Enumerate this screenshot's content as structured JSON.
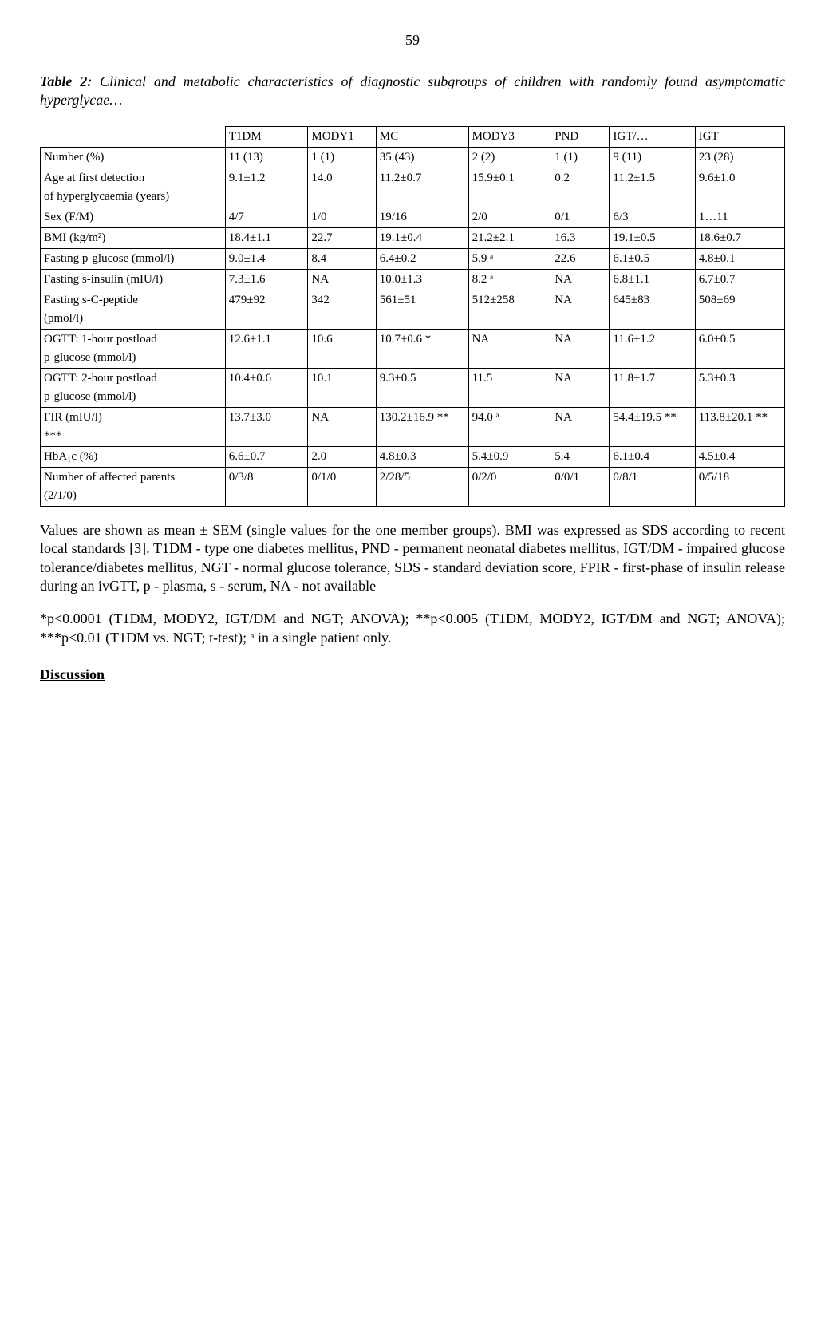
{
  "page_number": "59",
  "caption_prefix": "Table 2:",
  "caption_text": " Clinical and metabolic characteristics of diagnostic subgroups of children with randomly found asymptomatic hyperglycae…",
  "columns": [
    "",
    "T1DM",
    "MODY1",
    "MC",
    "MODY3",
    "PND",
    "IGT/…",
    "IGT"
  ],
  "rows": [
    {
      "label": "Number (%)",
      "vals": [
        "11 (13)",
        "1 (1)",
        "35 (43)",
        "2 (2)",
        "1 (1)",
        "9 (11)",
        "23 (28)"
      ]
    },
    {
      "label": "Age at first detection",
      "sublabel": "of hyperglycaemia (years)",
      "vals": [
        "9.1±1.2",
        "14.0",
        "11.2±0.7",
        "15.9±0.1",
        "0.2",
        "11.2±1.5",
        "9.6±1.0"
      ]
    },
    {
      "label": "Sex (F/M)",
      "vals": [
        "4/7",
        "1/0",
        "19/16",
        "2/0",
        "0/1",
        "6/3",
        "1…11"
      ]
    },
    {
      "label": "BMI (kg/m²)",
      "vals": [
        "18.4±1.1",
        "22.7",
        "19.1±0.4",
        "21.2±2.1",
        "16.3",
        "19.1±0.5",
        "18.6±0.7"
      ]
    },
    {
      "label": "Fasting p-glucose (mmol/l)",
      "vals": [
        "9.0±1.4",
        "8.4",
        "6.4±0.2",
        "5.9 ᵃ",
        "22.6",
        "6.1±0.5",
        "4.8±0.1"
      ]
    },
    {
      "label": "Fasting s-insulin (mIU/l)",
      "vals": [
        "7.3±1.6",
        "NA",
        "10.0±1.3",
        "8.2 ᵃ",
        "NA",
        "6.8±1.1",
        "6.7±0.7"
      ]
    },
    {
      "label": "Fasting s-C-peptide",
      "sublabel": "(pmol/l)",
      "vals": [
        "479±92",
        "342",
        "561±51",
        "512±258",
        "NA",
        "645±83",
        "508±69"
      ]
    },
    {
      "label": "OGTT: 1-hour postload",
      "sublabel": "p-glucose (mmol/l)",
      "vals": [
        "12.6±1.1",
        "10.6",
        "10.7±0.6 *",
        "NA",
        "NA",
        "11.6±1.2",
        "6.0±0.5"
      ]
    },
    {
      "label": "OGTT: 2-hour postload",
      "sublabel": "p-glucose (mmol/l)",
      "vals": [
        "10.4±0.6",
        "10.1",
        "9.3±0.5",
        "11.5",
        "NA",
        "11.8±1.7",
        "5.3±0.3"
      ]
    },
    {
      "label": "FIR (mIU/l)",
      "sublabel": "***",
      "vals": [
        "13.7±3.0",
        "NA",
        "130.2±16.9 **",
        "94.0 ᵃ",
        "NA",
        "54.4±19.5 **",
        "113.8±20.1 **"
      ]
    },
    {
      "label": "HbA₁c (%)",
      "vals": [
        "6.6±0.7",
        "2.0",
        "4.8±0.3",
        "5.4±0.9",
        "5.4",
        "6.1±0.4",
        "4.5±0.4"
      ]
    },
    {
      "label": "Number of affected parents",
      "sublabel": "(2/1/0)",
      "vals": [
        "0/3/8",
        "0/1/0",
        "2/28/5",
        "0/2/0",
        "0/0/1",
        "0/8/1",
        "0/5/18"
      ]
    }
  ],
  "notes": "Values are shown as mean ± SEM (single values for the one member groups). BMI was expressed as SDS according to recent local standards [3]. T1DM - type one diabetes mellitus, PND - permanent neonatal diabetes mellitus, IGT/DM - impaired glucose tolerance/diabetes mellitus, NGT - normal glucose tolerance, SDS - standard deviation score, FPIR - first-phase of insulin release during an ivGTT, p - plasma, s - serum, NA - not available",
  "notes2": "*p<0.0001 (T1DM, MODY2, IGT/DM and NGT; ANOVA); **p<0.005 (T1DM, MODY2, IGT/DM and NGT; ANOVA); ***p<0.01 (T1DM vs. NGT; t-test); ᵃ in a single patient only.",
  "discussion": "Discussion"
}
